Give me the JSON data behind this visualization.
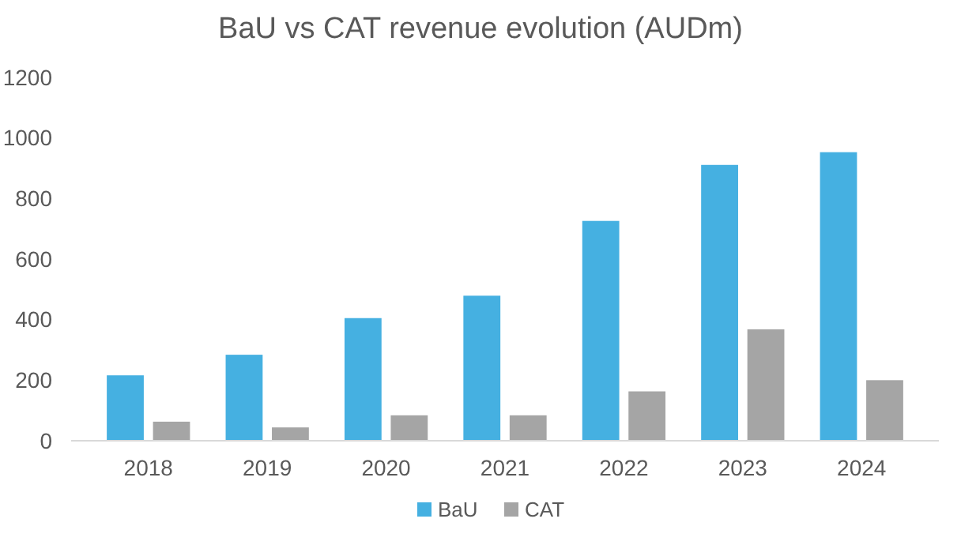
{
  "chart_data": {
    "type": "bar",
    "title": "BaU vs CAT revenue evolution (AUDm)",
    "categories": [
      "2018",
      "2019",
      "2020",
      "2021",
      "2022",
      "2023",
      "2024"
    ],
    "series": [
      {
        "name": "BaU",
        "color": "#45b0e1",
        "values": [
          216,
          284,
          405,
          479,
          726,
          911,
          953
        ]
      },
      {
        "name": "CAT",
        "color": "#a5a5a5",
        "values": [
          63,
          44,
          84,
          84,
          163,
          368,
          200
        ]
      }
    ],
    "ylim": [
      0,
      1200
    ],
    "yticks": [
      0,
      200,
      400,
      600,
      800,
      1000,
      1200
    ],
    "grid": false,
    "legend": "bottom"
  }
}
